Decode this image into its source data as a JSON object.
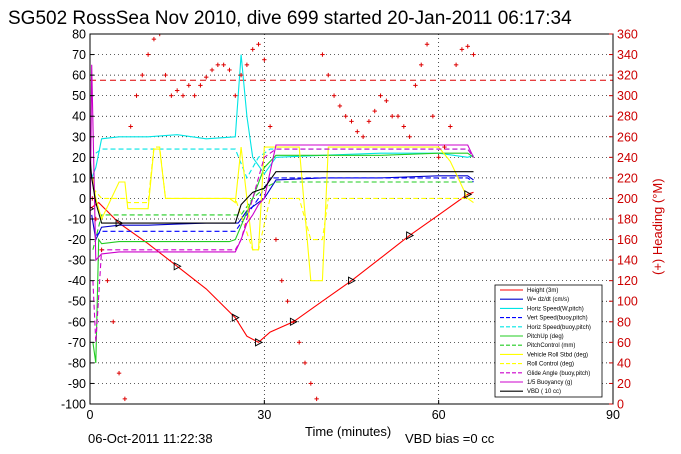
{
  "chart_data": {
    "type": "line",
    "title": "SG502 RossSea Nov 2010, dive 699 started 20-Jan-2011 06:17:34",
    "xlabel": "Time (minutes)",
    "ylabel_right": "(+) Heading (°M)",
    "xlim": [
      0,
      90
    ],
    "ylim": [
      -100,
      80
    ],
    "ylim_right": [
      0,
      360
    ],
    "xticks": [
      "0",
      "30",
      "60",
      "90"
    ],
    "yticks": [
      "80",
      "70",
      "60",
      "50",
      "40",
      "30",
      "20",
      "10",
      "0",
      "-10",
      "-20",
      "-30",
      "-40",
      "-50",
      "-60",
      "-70",
      "-80",
      "-90",
      "-100"
    ],
    "yticks_right": [
      "360",
      "340",
      "320",
      "300",
      "280",
      "260",
      "240",
      "220",
      "200",
      "180",
      "160",
      "140",
      "120",
      "100",
      "80",
      "60",
      "40",
      "20",
      "0"
    ],
    "grid": true,
    "legend_position": "bottom-right",
    "footer_date": "06-Oct-2011 11:22:38",
    "footer_note": "VBD bias =0 cc",
    "heading_mean": 315,
    "series": [
      {
        "name": "Height (3m)",
        "color": "#ff0000",
        "style": "solid",
        "x": [
          0,
          1.5,
          5,
          10,
          15,
          20,
          25,
          27,
          29,
          31,
          35,
          40,
          45,
          50,
          55,
          60,
          65,
          66
        ],
        "y": [
          -5,
          -2,
          -12,
          -22,
          -33,
          -44,
          -58,
          -67,
          -70,
          -65,
          -60,
          -50,
          -40,
          -29,
          -18,
          -8,
          2,
          3
        ]
      },
      {
        "name": "W= dz/dt (cm/s)",
        "color": "#0000cc",
        "style": "solid",
        "x": [
          0.3,
          1,
          2,
          5,
          10,
          15,
          20,
          24,
          25.5,
          27,
          28.5,
          30,
          32,
          40,
          50,
          60,
          65,
          66
        ],
        "y": [
          -8,
          -20,
          -14,
          -13,
          -13,
          -12.5,
          -12,
          -12,
          -12,
          -6,
          -3,
          0,
          9,
          10,
          10,
          11,
          11,
          9
        ]
      },
      {
        "name": "Horiz Speed(W,pitch)",
        "color": "#00e5e5",
        "style": "solid",
        "x": [
          0.3,
          1,
          2,
          5,
          10,
          15,
          20,
          25,
          26,
          27,
          28,
          30,
          32,
          40,
          50,
          60,
          65,
          66
        ],
        "y": [
          10,
          15,
          29,
          30,
          30,
          31,
          29,
          30,
          70,
          40,
          20,
          12,
          20,
          21,
          22,
          22,
          20,
          21
        ]
      },
      {
        "name": "Vert Speed(buoy,pitch)",
        "color": "#0000ff",
        "style": "dashed",
        "x": [
          1,
          2,
          5,
          10,
          15,
          20,
          25,
          27,
          29,
          31,
          40,
          50,
          60,
          65,
          66
        ],
        "y": [
          -18,
          -16,
          -16,
          -16,
          -16,
          -16,
          -16,
          -8,
          0,
          10,
          10,
          10,
          10,
          10,
          8
        ]
      },
      {
        "name": "Horiz Speed(buoy,pitch)",
        "color": "#00e5e5",
        "style": "dashed",
        "x": [
          1,
          2,
          5,
          10,
          15,
          20,
          25,
          27,
          29,
          31,
          40,
          50,
          60,
          65,
          66
        ],
        "y": [
          22,
          24,
          24,
          24,
          24,
          24,
          24,
          10,
          20,
          24,
          24,
          24,
          24,
          24,
          20
        ]
      },
      {
        "name": "PitchUp (deg)",
        "color": "#22cc22",
        "style": "solid",
        "x": [
          0.5,
          1,
          1.5,
          2,
          5,
          10,
          15,
          20,
          24,
          25,
          28,
          30,
          32,
          40,
          50,
          60,
          65,
          66
        ],
        "y": [
          -70,
          -80,
          -20,
          -22,
          -21,
          -21,
          -21,
          -21,
          -21,
          -20,
          0,
          15,
          21,
          21,
          21,
          22,
          22,
          20
        ]
      },
      {
        "name": "PitchControl (mm)",
        "color": "#22cc22",
        "style": "dashed",
        "x": [
          0.5,
          2,
          5,
          10,
          15,
          20,
          25,
          26,
          28,
          30,
          32,
          40,
          50,
          60,
          65,
          66
        ],
        "y": [
          -25,
          -8,
          -8,
          -8,
          -8,
          -8,
          -8,
          -8,
          0,
          5,
          8,
          8,
          8,
          8,
          8,
          8
        ]
      },
      {
        "name": "Vehicle Roll Stbd (deg)",
        "color": "#ffff00",
        "style": "solid",
        "x": [
          0.5,
          1,
          2,
          5,
          6,
          6.5,
          10,
          11,
          12,
          13,
          15,
          20,
          24,
          25,
          26,
          28,
          29,
          30,
          32,
          36,
          38,
          40,
          41,
          42,
          45,
          50,
          55,
          60,
          62,
          65,
          66
        ],
        "y": [
          10,
          0,
          -10,
          8,
          8,
          -5,
          -5,
          24,
          24,
          0,
          0,
          0,
          0,
          -2,
          25,
          -25,
          -25,
          25,
          25,
          25,
          -40,
          -40,
          25,
          25,
          25,
          25,
          25,
          25,
          18,
          0,
          -2
        ]
      },
      {
        "name": "Roll Control (deg)",
        "color": "#ffff00",
        "style": "dashed",
        "x": [
          0.5,
          2,
          5,
          6,
          6.5,
          10,
          11,
          12,
          13,
          15,
          20,
          24,
          25,
          28,
          29,
          31,
          32,
          36,
          38,
          40,
          41,
          45,
          50,
          55,
          60,
          62,
          65,
          66
        ],
        "y": [
          5,
          0,
          0,
          0,
          -2,
          -2,
          25,
          25,
          0,
          0,
          0,
          0,
          0,
          -25,
          -25,
          0,
          0,
          0,
          -20,
          -20,
          0,
          0,
          0,
          0,
          0,
          0,
          0,
          0
        ]
      },
      {
        "name": "Glide Angle (buoy,pitch)",
        "color": "#cc00cc",
        "style": "dashed",
        "x": [
          0.5,
          1,
          2,
          5,
          10,
          15,
          20,
          25,
          26,
          28,
          30,
          32,
          40,
          50,
          60,
          65,
          66
        ],
        "y": [
          -40,
          -70,
          -25,
          -25,
          -25,
          -25,
          -25,
          -25,
          -20,
          0,
          20,
          24,
          24,
          24,
          24,
          24,
          20
        ]
      },
      {
        "name": "1/5 Buoyancy (g)",
        "color": "#cc00cc",
        "style": "solid",
        "x": [
          0,
          0.3,
          1,
          2,
          5,
          10,
          15,
          20,
          25,
          26,
          27,
          28,
          29,
          30,
          32,
          40,
          50,
          60,
          65,
          66
        ],
        "y": [
          -20,
          65,
          -30,
          -27,
          -26,
          -26,
          -26,
          -26,
          -26,
          -20,
          -12,
          -8,
          -3,
          0,
          26,
          26,
          26,
          26,
          26,
          20
        ]
      },
      {
        "name": "VBD ( 10 cc)",
        "color": "#000000",
        "style": "solid",
        "x": [
          0,
          0.3,
          1,
          2,
          5,
          10,
          15,
          20,
          25,
          26,
          28,
          30,
          32,
          40,
          50,
          60,
          65,
          66
        ],
        "y": [
          20,
          10,
          -2,
          -12,
          -12,
          -12,
          -12,
          -12,
          -12,
          -3,
          3,
          5,
          13,
          13,
          13,
          13,
          13,
          13
        ]
      },
      {
        "name": "Heading",
        "axis": "right",
        "color": "#dd0000",
        "style": "markers",
        "x": [
          0.4,
          1,
          2,
          3,
          4,
          5,
          6,
          7,
          8,
          9,
          10,
          11,
          12,
          13,
          14,
          15,
          16,
          17,
          18,
          19,
          20,
          21,
          22,
          23,
          24,
          25,
          26,
          27,
          28,
          29,
          30,
          31,
          32,
          33,
          34,
          35,
          36,
          37,
          38,
          39,
          40,
          41,
          42,
          43,
          44,
          45,
          46,
          47,
          48,
          49,
          50,
          51,
          52,
          53,
          54,
          55,
          56,
          57,
          58,
          59,
          60,
          61,
          62,
          63,
          64,
          65,
          66
        ],
        "y": [
          200,
          180,
          150,
          120,
          80,
          30,
          5,
          270,
          300,
          320,
          340,
          355,
          360,
          320,
          300,
          305,
          300,
          310,
          300,
          310,
          318,
          325,
          330,
          330,
          325,
          300,
          320,
          330,
          345,
          350,
          335,
          270,
          160,
          120,
          100,
          80,
          60,
          40,
          20,
          5,
          340,
          320,
          300,
          290,
          280,
          275,
          265,
          260,
          275,
          285,
          300,
          295,
          280,
          280,
          270,
          260,
          310,
          330,
          350,
          280,
          240,
          250,
          270,
          330,
          345,
          348,
          340
        ]
      }
    ]
  }
}
